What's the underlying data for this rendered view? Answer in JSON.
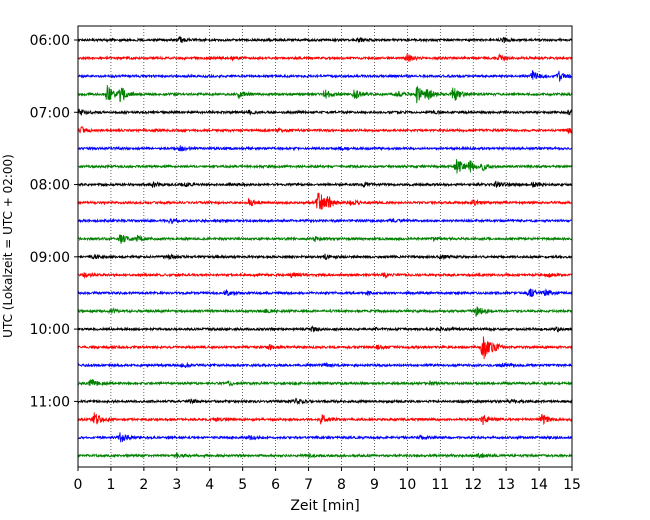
{
  "chart_data": {
    "type": "line",
    "title": "",
    "xlabel": "Zeit  [min]",
    "ylabel": "UTC (Lokalzeit = UTC + 02:00)",
    "xlim": [
      0,
      15
    ],
    "x_ticks": [
      "0",
      "1",
      "2",
      "3",
      "4",
      "5",
      "6",
      "7",
      "8",
      "9",
      "10",
      "11",
      "12",
      "13",
      "14",
      "15"
    ],
    "y_ticks": [
      "06:00",
      "07:00",
      "08:00",
      "09:00",
      "10:00",
      "11:00"
    ],
    "grid": "vertical dotted at each minute",
    "trace_colors": [
      "#000000",
      "#ff0000",
      "#0000ff",
      "#008000"
    ],
    "traces": [
      {
        "start": "06:00",
        "events": [
          [
            3.1,
            0.25
          ],
          [
            12.9,
            0.3
          ],
          [
            8.5,
            0.2
          ]
        ]
      },
      {
        "start": "06:15",
        "events": [
          [
            10.0,
            0.45
          ],
          [
            12.8,
            0.3
          ],
          [
            4.7,
            0.15
          ]
        ]
      },
      {
        "start": "06:30",
        "events": [
          [
            13.8,
            0.55
          ],
          [
            14.6,
            0.5
          ]
        ]
      },
      {
        "start": "06:45",
        "events": [
          [
            0.9,
            1.0
          ],
          [
            1.3,
            0.8
          ],
          [
            4.9,
            0.45
          ],
          [
            7.5,
            0.5
          ],
          [
            8.4,
            0.6
          ],
          [
            10.3,
            1.0
          ],
          [
            10.6,
            0.8
          ],
          [
            11.4,
            0.9
          ],
          [
            9.7,
            0.3
          ]
        ]
      },
      {
        "start": "07:00",
        "events": [
          [
            0.05,
            0.3
          ],
          [
            5.2,
            0.2
          ],
          [
            10.8,
            0.15
          ],
          [
            14.9,
            0.25
          ]
        ]
      },
      {
        "start": "07:15",
        "events": [
          [
            0.1,
            0.35
          ],
          [
            14.9,
            0.3
          ],
          [
            6.1,
            0.15
          ]
        ]
      },
      {
        "start": "07:30",
        "events": [
          [
            3.1,
            0.3
          ],
          [
            8.0,
            0.15
          ]
        ]
      },
      {
        "start": "07:45",
        "events": [
          [
            11.5,
            1.0
          ],
          [
            11.9,
            0.6
          ],
          [
            12.3,
            0.3
          ]
        ]
      },
      {
        "start": "08:00",
        "events": [
          [
            2.3,
            0.3
          ],
          [
            3.2,
            0.25
          ],
          [
            12.7,
            0.35
          ],
          [
            13.8,
            0.3
          ],
          [
            8.7,
            0.2
          ]
        ]
      },
      {
        "start": "08:15",
        "events": [
          [
            5.2,
            0.45
          ],
          [
            7.3,
            1.4
          ],
          [
            7.6,
            0.5
          ],
          [
            8.3,
            0.3
          ],
          [
            12.0,
            0.3
          ]
        ]
      },
      {
        "start": "08:30",
        "events": [
          [
            2.8,
            0.2
          ],
          [
            9.5,
            0.15
          ]
        ]
      },
      {
        "start": "08:45",
        "events": [
          [
            1.3,
            0.6
          ],
          [
            1.8,
            0.35
          ],
          [
            7.2,
            0.2
          ],
          [
            10.8,
            0.2
          ]
        ]
      },
      {
        "start": "09:00",
        "events": [
          [
            0.5,
            0.25
          ],
          [
            2.8,
            0.2
          ],
          [
            7.5,
            0.3
          ],
          [
            11.0,
            0.2
          ]
        ]
      },
      {
        "start": "09:15",
        "events": [
          [
            0.2,
            0.2
          ],
          [
            6.5,
            0.25
          ],
          [
            9.3,
            0.2
          ],
          [
            14.3,
            0.2
          ]
        ]
      },
      {
        "start": "09:30",
        "events": [
          [
            4.5,
            0.3
          ],
          [
            13.7,
            0.55
          ],
          [
            14.2,
            0.35
          ],
          [
            8.8,
            0.15
          ]
        ]
      },
      {
        "start": "09:45",
        "events": [
          [
            1.0,
            0.25
          ],
          [
            12.1,
            0.6
          ],
          [
            5.7,
            0.15
          ]
        ]
      },
      {
        "start": "10:00",
        "events": [
          [
            7.1,
            0.2
          ],
          [
            9.0,
            0.15
          ],
          [
            11.0,
            0.2
          ],
          [
            14.5,
            0.2
          ]
        ]
      },
      {
        "start": "10:15",
        "events": [
          [
            5.8,
            0.25
          ],
          [
            12.3,
            1.5
          ],
          [
            12.6,
            0.4
          ],
          [
            9.1,
            0.2
          ]
        ]
      },
      {
        "start": "10:30",
        "events": [
          [
            3.2,
            0.2
          ],
          [
            7.5,
            0.2
          ],
          [
            12.9,
            0.15
          ]
        ]
      },
      {
        "start": "10:45",
        "events": [
          [
            0.4,
            0.5
          ],
          [
            4.6,
            0.2
          ],
          [
            10.7,
            0.2
          ]
        ]
      },
      {
        "start": "11:00",
        "events": [
          [
            6.6,
            0.35
          ],
          [
            3.4,
            0.2
          ],
          [
            13.1,
            0.15
          ]
        ]
      },
      {
        "start": "11:15",
        "events": [
          [
            0.5,
            0.7
          ],
          [
            7.4,
            0.55
          ],
          [
            12.3,
            0.5
          ],
          [
            14.1,
            0.55
          ],
          [
            4.2,
            0.2
          ]
        ]
      },
      {
        "start": "11:30",
        "events": [
          [
            1.3,
            0.6
          ],
          [
            5.2,
            0.2
          ],
          [
            10.4,
            0.15
          ]
        ]
      },
      {
        "start": "11:45",
        "events": [
          [
            3.0,
            0.25
          ],
          [
            7.0,
            0.15
          ],
          [
            12.2,
            0.2
          ]
        ]
      }
    ]
  }
}
